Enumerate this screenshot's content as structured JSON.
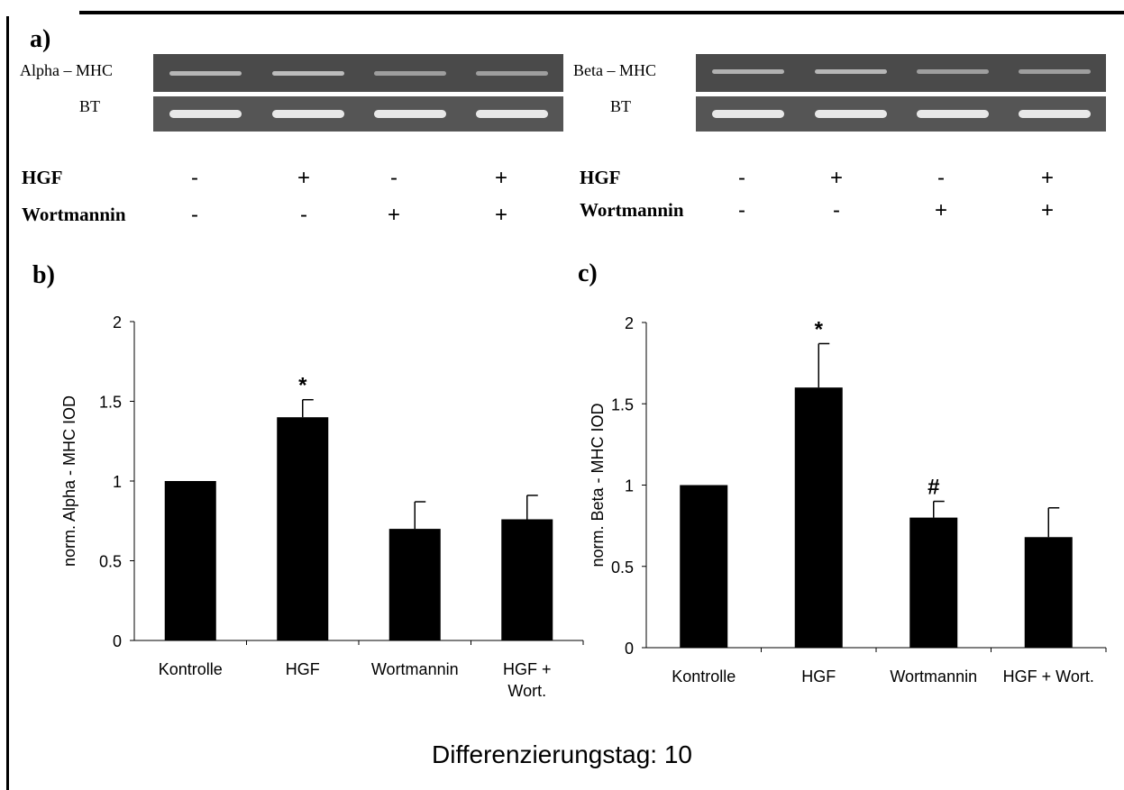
{
  "panels": {
    "a": "a)",
    "b": "b)",
    "c": "c)"
  },
  "blots": {
    "left": {
      "top_label": "Alpha – MHC",
      "bottom_label": "BT",
      "top_intensity": [
        0.55,
        0.6,
        0.35,
        0.35
      ],
      "bottom_intensity": [
        0.95,
        0.95,
        0.95,
        0.95
      ]
    },
    "right": {
      "top_label": "Beta – MHC",
      "bottom_label": "BT",
      "top_intensity": [
        0.5,
        0.55,
        0.35,
        0.35
      ],
      "bottom_intensity": [
        0.95,
        0.95,
        0.95,
        0.95
      ]
    }
  },
  "conditions": {
    "row1_label": "HGF",
    "row2_label": "Wortmannin",
    "row1_signs": [
      "-",
      "+",
      "-",
      "+"
    ],
    "row2_signs": [
      "-",
      "-",
      "+",
      "+"
    ]
  },
  "chart_data": [
    {
      "type": "bar",
      "categories": [
        "Kontrolle",
        "HGF",
        "Wortmannin",
        "HGF + Wort."
      ],
      "category_lines": [
        [
          "Kontrolle"
        ],
        [
          "HGF"
        ],
        [
          "Wortmannin"
        ],
        [
          "HGF +",
          "Wort."
        ]
      ],
      "values": [
        1.0,
        1.4,
        0.7,
        0.76
      ],
      "errors": [
        0.0,
        0.11,
        0.17,
        0.15
      ],
      "annotations": [
        "",
        "*",
        "",
        ""
      ],
      "title": "",
      "xlabel": "",
      "ylabel": "norm. Alpha - MHC IOD",
      "ylim": [
        0,
        2
      ],
      "yticks": [
        0,
        0.5,
        1,
        1.5,
        2
      ],
      "bar_color": "#000000"
    },
    {
      "type": "bar",
      "categories": [
        "Kontrolle",
        "HGF",
        "Wortmannin",
        "HGF + Wort."
      ],
      "category_lines": [
        [
          "Kontrolle"
        ],
        [
          "HGF"
        ],
        [
          "Wortmannin"
        ],
        [
          "HGF + Wort."
        ]
      ],
      "values": [
        1.0,
        1.6,
        0.8,
        0.68
      ],
      "errors": [
        0.0,
        0.27,
        0.1,
        0.18
      ],
      "annotations": [
        "",
        "*",
        "#",
        ""
      ],
      "title": "",
      "xlabel": "",
      "ylabel": "norm. Beta - MHC IOD",
      "ylim": [
        0,
        2
      ],
      "yticks": [
        0,
        0.5,
        1,
        1.5,
        2
      ],
      "bar_color": "#000000"
    }
  ],
  "footer": "Differenzierungstag: 10"
}
